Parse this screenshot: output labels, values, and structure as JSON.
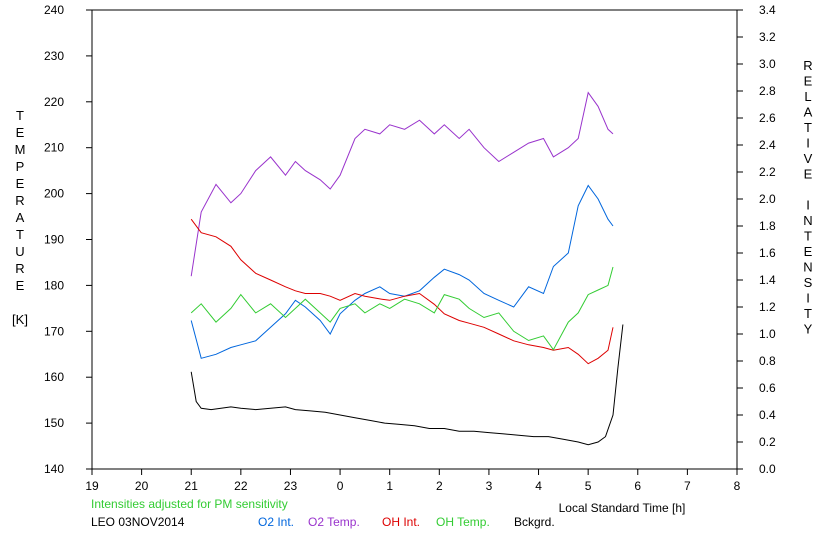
{
  "chart_data": {
    "type": "line",
    "title": "",
    "xlabel": "Local Standard Time [h]",
    "ylabel_left": "TEMPERATURE [K]",
    "ylabel_left_letters": [
      "T",
      "E",
      "M",
      "P",
      "E",
      "R",
      "A",
      "T",
      "U",
      "R",
      "E"
    ],
    "ylabel_left_unit": "[K]",
    "ylabel_right": "RELATIVE INTENSITY",
    "ylabel_right_letters": [
      "R",
      "E",
      "L",
      "A",
      "T",
      "I",
      "V",
      "E",
      "",
      "I",
      "N",
      "T",
      "E",
      "N",
      "S",
      "I",
      "T",
      "Y"
    ],
    "xlim": [
      19,
      32
    ],
    "xticks": [
      19,
      20,
      21,
      22,
      23,
      24,
      25,
      26,
      27,
      28,
      29,
      30,
      31,
      32
    ],
    "xtick_labels": [
      "19",
      "20",
      "21",
      "22",
      "23",
      "0",
      "1",
      "2",
      "3",
      "4",
      "5",
      "6",
      "7",
      "8"
    ],
    "ylim_left": [
      140,
      240
    ],
    "yticks_left": [
      140,
      150,
      160,
      170,
      180,
      190,
      200,
      210,
      220,
      230,
      240
    ],
    "ylim_right": [
      0.0,
      3.4
    ],
    "yticks_right": [
      "0.0",
      "0.2",
      "0.4",
      "0.6",
      "0.8",
      "1.0",
      "1.2",
      "1.4",
      "1.6",
      "1.8",
      "2.0",
      "2.2",
      "2.4",
      "2.6",
      "2.8",
      "3.0",
      "3.2",
      "3.4"
    ],
    "grid": false,
    "note": "Intensities adjusted for PM sensitivity",
    "station_date": "LEO 03NOV2014",
    "series": [
      {
        "name": "O2 Int.",
        "axis": "right",
        "color": "#0066dd",
        "x": [
          21.0,
          21.2,
          21.5,
          21.8,
          22.0,
          22.3,
          22.6,
          22.9,
          23.1,
          23.3,
          23.6,
          23.8,
          24.0,
          24.3,
          24.5,
          24.8,
          25.0,
          25.3,
          25.6,
          25.9,
          26.1,
          26.4,
          26.6,
          26.9,
          27.2,
          27.5,
          27.8,
          28.1,
          28.3,
          28.6,
          28.8,
          29.0,
          29.2,
          29.4,
          29.5
        ],
        "y": [
          1.1,
          0.82,
          0.85,
          0.9,
          0.92,
          0.95,
          1.05,
          1.15,
          1.25,
          1.2,
          1.1,
          1.0,
          1.15,
          1.25,
          1.3,
          1.35,
          1.3,
          1.28,
          1.32,
          1.42,
          1.48,
          1.44,
          1.4,
          1.3,
          1.25,
          1.2,
          1.35,
          1.3,
          1.5,
          1.6,
          1.95,
          2.1,
          2.0,
          1.85,
          1.8
        ]
      },
      {
        "name": "O2 Temp.",
        "axis": "left",
        "color": "#9933cc",
        "x": [
          21.0,
          21.2,
          21.5,
          21.8,
          22.0,
          22.3,
          22.6,
          22.9,
          23.1,
          23.3,
          23.6,
          23.8,
          24.0,
          24.3,
          24.5,
          24.8,
          25.0,
          25.3,
          25.6,
          25.9,
          26.1,
          26.4,
          26.6,
          26.9,
          27.2,
          27.5,
          27.8,
          28.1,
          28.3,
          28.6,
          28.8,
          29.0,
          29.2,
          29.4,
          29.5
        ],
        "y": [
          182,
          196,
          202,
          198,
          200,
          205,
          208,
          204,
          207,
          205,
          203,
          201,
          204,
          212,
          214,
          213,
          215,
          214,
          216,
          213,
          215,
          212,
          214,
          210,
          207,
          209,
          211,
          212,
          208,
          210,
          212,
          222,
          219,
          214,
          213
        ]
      },
      {
        "name": "OH Int.",
        "axis": "right",
        "color": "#dd0000",
        "x": [
          21.0,
          21.2,
          21.5,
          21.8,
          22.0,
          22.3,
          22.6,
          22.9,
          23.1,
          23.3,
          23.6,
          23.8,
          24.0,
          24.3,
          24.5,
          24.8,
          25.0,
          25.3,
          25.6,
          25.9,
          26.1,
          26.4,
          26.6,
          26.9,
          27.2,
          27.5,
          27.8,
          28.1,
          28.3,
          28.6,
          28.8,
          29.0,
          29.2,
          29.4,
          29.5
        ],
        "y": [
          1.85,
          1.75,
          1.72,
          1.65,
          1.55,
          1.45,
          1.4,
          1.35,
          1.32,
          1.3,
          1.3,
          1.28,
          1.25,
          1.3,
          1.28,
          1.26,
          1.25,
          1.28,
          1.3,
          1.22,
          1.15,
          1.1,
          1.08,
          1.05,
          1.0,
          0.95,
          0.92,
          0.9,
          0.88,
          0.9,
          0.85,
          0.78,
          0.82,
          0.88,
          1.05
        ]
      },
      {
        "name": "OH Temp.",
        "axis": "left",
        "color": "#33cc33",
        "x": [
          21.0,
          21.2,
          21.5,
          21.8,
          22.0,
          22.3,
          22.6,
          22.9,
          23.1,
          23.3,
          23.6,
          23.8,
          24.0,
          24.3,
          24.5,
          24.8,
          25.0,
          25.3,
          25.6,
          25.9,
          26.1,
          26.4,
          26.6,
          26.9,
          27.2,
          27.5,
          27.8,
          28.1,
          28.3,
          28.6,
          28.8,
          29.0,
          29.2,
          29.4,
          29.5
        ],
        "y": [
          174,
          176,
          172,
          175,
          178,
          174,
          176,
          173,
          175,
          177,
          174,
          172,
          175,
          176,
          174,
          176,
          175,
          177,
          176,
          174,
          178,
          177,
          175,
          173,
          174,
          170,
          168,
          169,
          166,
          172,
          174,
          178,
          179,
          180,
          184
        ]
      },
      {
        "name": "Bckgrd.",
        "axis": "right",
        "color": "#000000",
        "x": [
          21.0,
          21.1,
          21.2,
          21.4,
          21.6,
          21.8,
          22.0,
          22.3,
          22.6,
          22.9,
          23.1,
          23.4,
          23.7,
          24.0,
          24.3,
          24.6,
          24.9,
          25.2,
          25.5,
          25.8,
          26.1,
          26.4,
          26.7,
          27.0,
          27.3,
          27.6,
          27.9,
          28.2,
          28.5,
          28.8,
          29.0,
          29.2,
          29.35,
          29.5,
          29.6,
          29.7
        ],
        "y": [
          0.72,
          0.5,
          0.45,
          0.44,
          0.45,
          0.46,
          0.45,
          0.44,
          0.45,
          0.46,
          0.44,
          0.43,
          0.42,
          0.4,
          0.38,
          0.36,
          0.34,
          0.33,
          0.32,
          0.3,
          0.3,
          0.28,
          0.28,
          0.27,
          0.26,
          0.25,
          0.24,
          0.24,
          0.22,
          0.2,
          0.18,
          0.2,
          0.24,
          0.4,
          0.75,
          1.07
        ]
      }
    ]
  }
}
